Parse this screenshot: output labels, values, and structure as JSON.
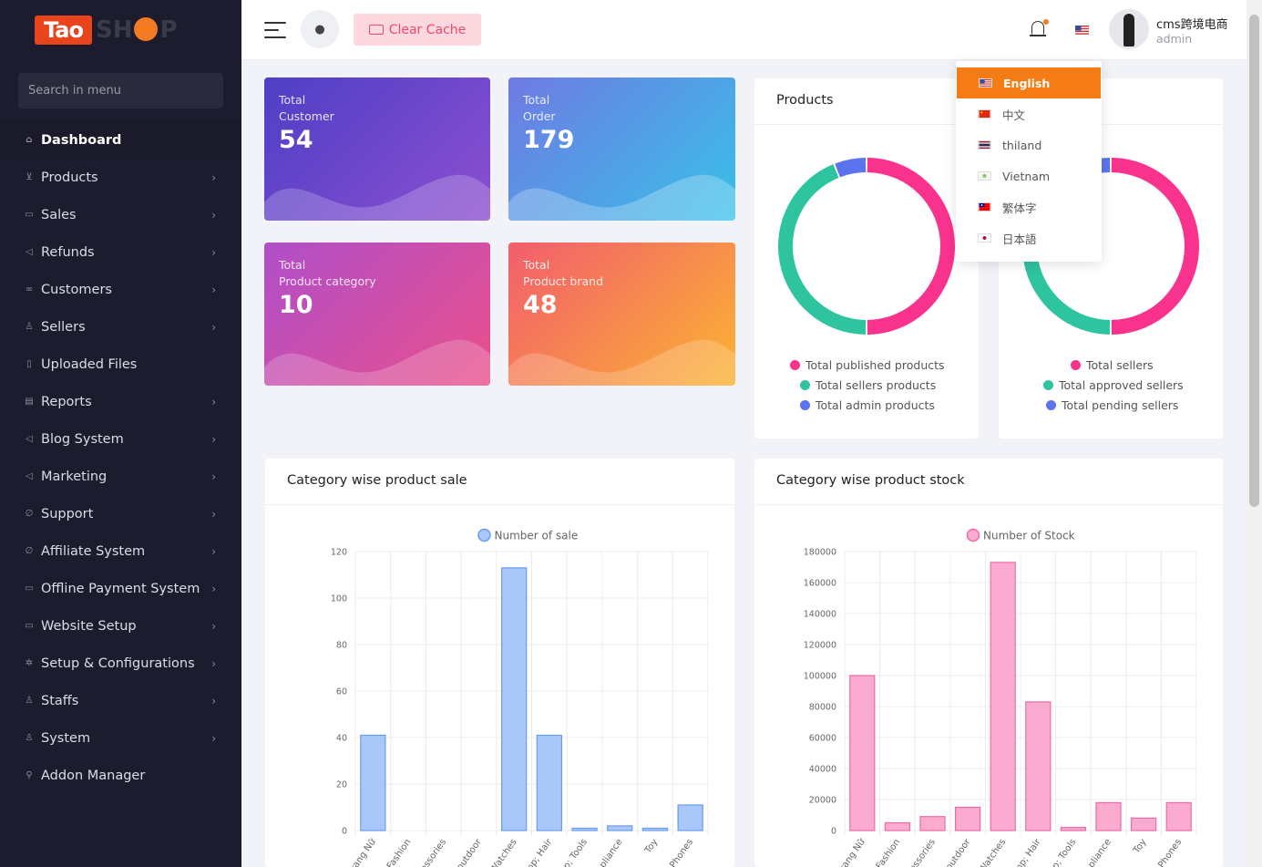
{
  "sidebar": {
    "logo_text": "Tao",
    "logo_text2": "SH",
    "logo_text3": "P",
    "search_placeholder": "Search in menu",
    "items": [
      {
        "label": "Dashboard",
        "icon": "home-icon",
        "chevron": false,
        "active": true
      },
      {
        "label": "Products",
        "icon": "cart-icon",
        "chevron": true
      },
      {
        "label": "Sales",
        "icon": "money-icon",
        "chevron": true
      },
      {
        "label": "Refunds",
        "icon": "backward-icon",
        "chevron": true
      },
      {
        "label": "Customers",
        "icon": "user-friends-icon",
        "chevron": true
      },
      {
        "label": "Sellers",
        "icon": "user-icon",
        "chevron": true
      },
      {
        "label": "Uploaded Files",
        "icon": "folder-icon",
        "chevron": false
      },
      {
        "label": "Reports",
        "icon": "file-icon",
        "chevron": true
      },
      {
        "label": "Blog System",
        "icon": "bullhorn-icon",
        "chevron": true
      },
      {
        "label": "Marketing",
        "icon": "bullhorn-icon",
        "chevron": true
      },
      {
        "label": "Support",
        "icon": "link-icon",
        "chevron": true
      },
      {
        "label": "Affiliate System",
        "icon": "link-icon",
        "chevron": true
      },
      {
        "label": "Offline Payment System",
        "icon": "money-check-icon",
        "chevron": true
      },
      {
        "label": "Website Setup",
        "icon": "desktop-icon",
        "chevron": true
      },
      {
        "label": "Setup & Configurations",
        "icon": "gear-icon",
        "chevron": true
      },
      {
        "label": "Staffs",
        "icon": "user-icon",
        "chevron": true
      },
      {
        "label": "System",
        "icon": "user-icon",
        "chevron": true
      },
      {
        "label": "Addon Manager",
        "icon": "wrench-icon",
        "chevron": false
      }
    ]
  },
  "topbar": {
    "clear_cache_label": "Clear Cache",
    "user_name": "cms跨境电商",
    "user_role": "admin"
  },
  "cards": [
    {
      "line1": "Total",
      "line2": "Customer",
      "value": "54",
      "colors": [
        "#4d3fc6",
        "#8d4fd0"
      ]
    },
    {
      "line1": "Total",
      "line2": "Order",
      "value": "179",
      "colors": [
        "#6f7ae3",
        "#37c1e8"
      ]
    },
    {
      "line1": "Total",
      "line2": "Product category",
      "value": "10",
      "colors": [
        "#b04fca",
        "#ea4f8a"
      ]
    },
    {
      "line1": "Total",
      "line2": "Product brand",
      "value": "48",
      "colors": [
        "#f25d6d",
        "#fbb332"
      ]
    }
  ],
  "products_panel": {
    "title": "Products",
    "legend": [
      "Total published products",
      "Total sellers products",
      "Total admin products"
    ]
  },
  "sellers_panel": {
    "legend": [
      "Total sellers",
      "Total approved sellers",
      "Total pending sellers"
    ]
  },
  "language_menu": [
    {
      "label": "English",
      "selected": true
    },
    {
      "label": "中文"
    },
    {
      "label": "thiland"
    },
    {
      "label": "Vietnam"
    },
    {
      "label": "繁体字"
    },
    {
      "label": "日本語"
    }
  ],
  "sale_panel": {
    "title": "Category wise product sale"
  },
  "stock_panel": {
    "title": "Category wise product stock"
  },
  "chart_data": [
    {
      "type": "pie",
      "labels": [
        "Total published products",
        "Total sellers products",
        "Total admin products"
      ],
      "values": [
        50,
        44,
        6
      ],
      "colors": [
        "#f9328e",
        "#2ec4a0",
        "#5b74ee"
      ]
    },
    {
      "type": "pie",
      "labels": [
        "Total sellers",
        "Total approved sellers",
        "Total pending sellers"
      ],
      "values": [
        50,
        44,
        6
      ],
      "colors": [
        "#f9328e",
        "#2ec4a0",
        "#5b74ee"
      ]
    },
    {
      "type": "bar",
      "series": [
        {
          "name": "Number of sale",
          "values": [
            41,
            0,
            0,
            0,
            113,
            41,
            1,
            2,
            1,
            11
          ]
        }
      ],
      "categories": [
        "Trang Nữ",
        "Fashion",
        "Accessories",
        "Outdoor",
        "Watches",
        "Bump; Hair",
        "Top; Tools",
        "Appliance",
        "Toy",
        "Phones"
      ],
      "tick_labels_visible": [
        "rang Nữ",
        "Fashion",
        "essories",
        "outdoor",
        "Watches",
        "mp; Hair",
        "p; Tools",
        "pliance",
        "Toy",
        "Phones"
      ],
      "ylim": [
        0,
        120
      ],
      "yticks": [
        0,
        20,
        40,
        60,
        80,
        100,
        120
      ],
      "color": "#a9c8f9",
      "border": "#6a9cf0"
    },
    {
      "type": "bar",
      "series": [
        {
          "name": "Number of Stock",
          "values": [
            100000,
            5000,
            9000,
            15000,
            173000,
            83000,
            2000,
            18000,
            8000,
            18000
          ]
        }
      ],
      "categories": [
        "Trang Nữ",
        "Fashion",
        "Accessories",
        "Outdoor",
        "Watches",
        "Bump; Hair",
        "Top; Tools",
        "Appliance",
        "Toy",
        "Phones"
      ],
      "tick_labels_visible": [
        "rang Nữ",
        "Fashion",
        "essories",
        "outdoor",
        "Watches",
        "mp; Hair",
        "p; Tools",
        "pliance",
        "Toy",
        "Phones"
      ],
      "ylim": [
        0,
        180000
      ],
      "yticks": [
        0,
        20000,
        40000,
        60000,
        80000,
        100000,
        120000,
        140000,
        160000,
        180000
      ],
      "color": "#fcabd0",
      "border": "#f06aa8"
    }
  ]
}
